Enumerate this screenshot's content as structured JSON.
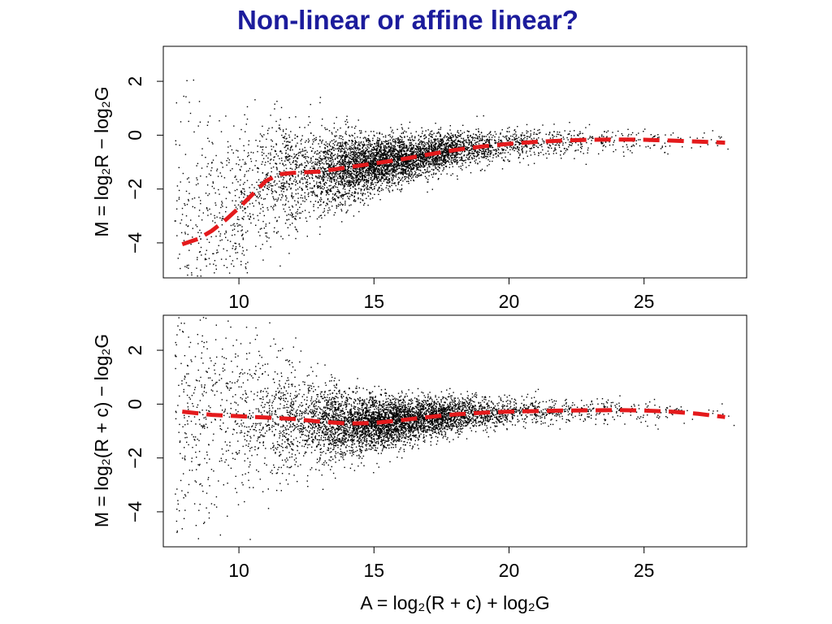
{
  "slide": {
    "title": "Non-linear or affine linear?"
  },
  "colors": {
    "title": "#1c1c9c",
    "points": "#000000",
    "fit_line": "#e41a1c",
    "frame": "#000000",
    "background": "#ffffff"
  },
  "chart_data": [
    {
      "type": "scatter",
      "title": "",
      "xlabel": "",
      "ylabel": "M = log₂R − log₂G",
      "xlim": [
        7.2,
        28.8
      ],
      "ylim": [
        -5.3,
        3.3
      ],
      "xticks": [
        10,
        15,
        20,
        25
      ],
      "yticks": [
        -4,
        -2,
        0,
        2
      ],
      "grid": false,
      "legend": "none",
      "point_cloud": {
        "approx_points": 6000,
        "x_range": [
          7.5,
          28.5
        ],
        "center_x": 15.5,
        "description_of_density": "dense around A=14-16, fans out at low A",
        "trend_follows_fit": true
      },
      "series": [
        {
          "style": "dashed",
          "color": "#e41a1c",
          "x": [
            7.9,
            8.5,
            9.0,
            9.5,
            10.0,
            10.5,
            11.0,
            11.5,
            12.0,
            13.0,
            14.0,
            15.0,
            16.0,
            17.0,
            18.0,
            19.0,
            20.0,
            21.0,
            22.0,
            23.0,
            24.0,
            25.0,
            26.0,
            27.0,
            28.0
          ],
          "y": [
            -4.05,
            -3.85,
            -3.55,
            -3.15,
            -2.7,
            -2.2,
            -1.7,
            -1.45,
            -1.4,
            -1.35,
            -1.2,
            -1.05,
            -0.9,
            -0.72,
            -0.55,
            -0.42,
            -0.32,
            -0.25,
            -0.2,
            -0.17,
            -0.16,
            -0.17,
            -0.2,
            -0.24,
            -0.28
          ]
        }
      ]
    },
    {
      "type": "scatter",
      "title": "",
      "xlabel": "A = log₂(R + c) + log₂G",
      "ylabel": "M = log₂(R + c) − log₂G",
      "xlim": [
        7.2,
        28.8
      ],
      "ylim": [
        -5.3,
        3.3
      ],
      "xticks": [
        10,
        15,
        20,
        25
      ],
      "yticks": [
        -4,
        -2,
        0,
        2
      ],
      "grid": false,
      "legend": "none",
      "point_cloud": {
        "approx_points": 6000,
        "x_range": [
          7.5,
          28.5
        ],
        "center_x": 15.5,
        "description_of_density": "dense around A=14-16, symmetric spread around fit",
        "trend_follows_fit": true
      },
      "series": [
        {
          "style": "dashed",
          "color": "#e41a1c",
          "x": [
            7.9,
            9.0,
            10.0,
            11.0,
            12.0,
            13.0,
            14.0,
            15.0,
            16.0,
            17.0,
            18.0,
            19.0,
            20.0,
            21.0,
            22.0,
            23.0,
            24.0,
            25.0,
            26.0,
            27.0,
            28.0
          ],
          "y": [
            -0.28,
            -0.4,
            -0.45,
            -0.5,
            -0.55,
            -0.65,
            -0.72,
            -0.7,
            -0.6,
            -0.48,
            -0.38,
            -0.32,
            -0.28,
            -0.26,
            -0.24,
            -0.23,
            -0.22,
            -0.24,
            -0.28,
            -0.36,
            -0.48
          ]
        }
      ]
    }
  ]
}
